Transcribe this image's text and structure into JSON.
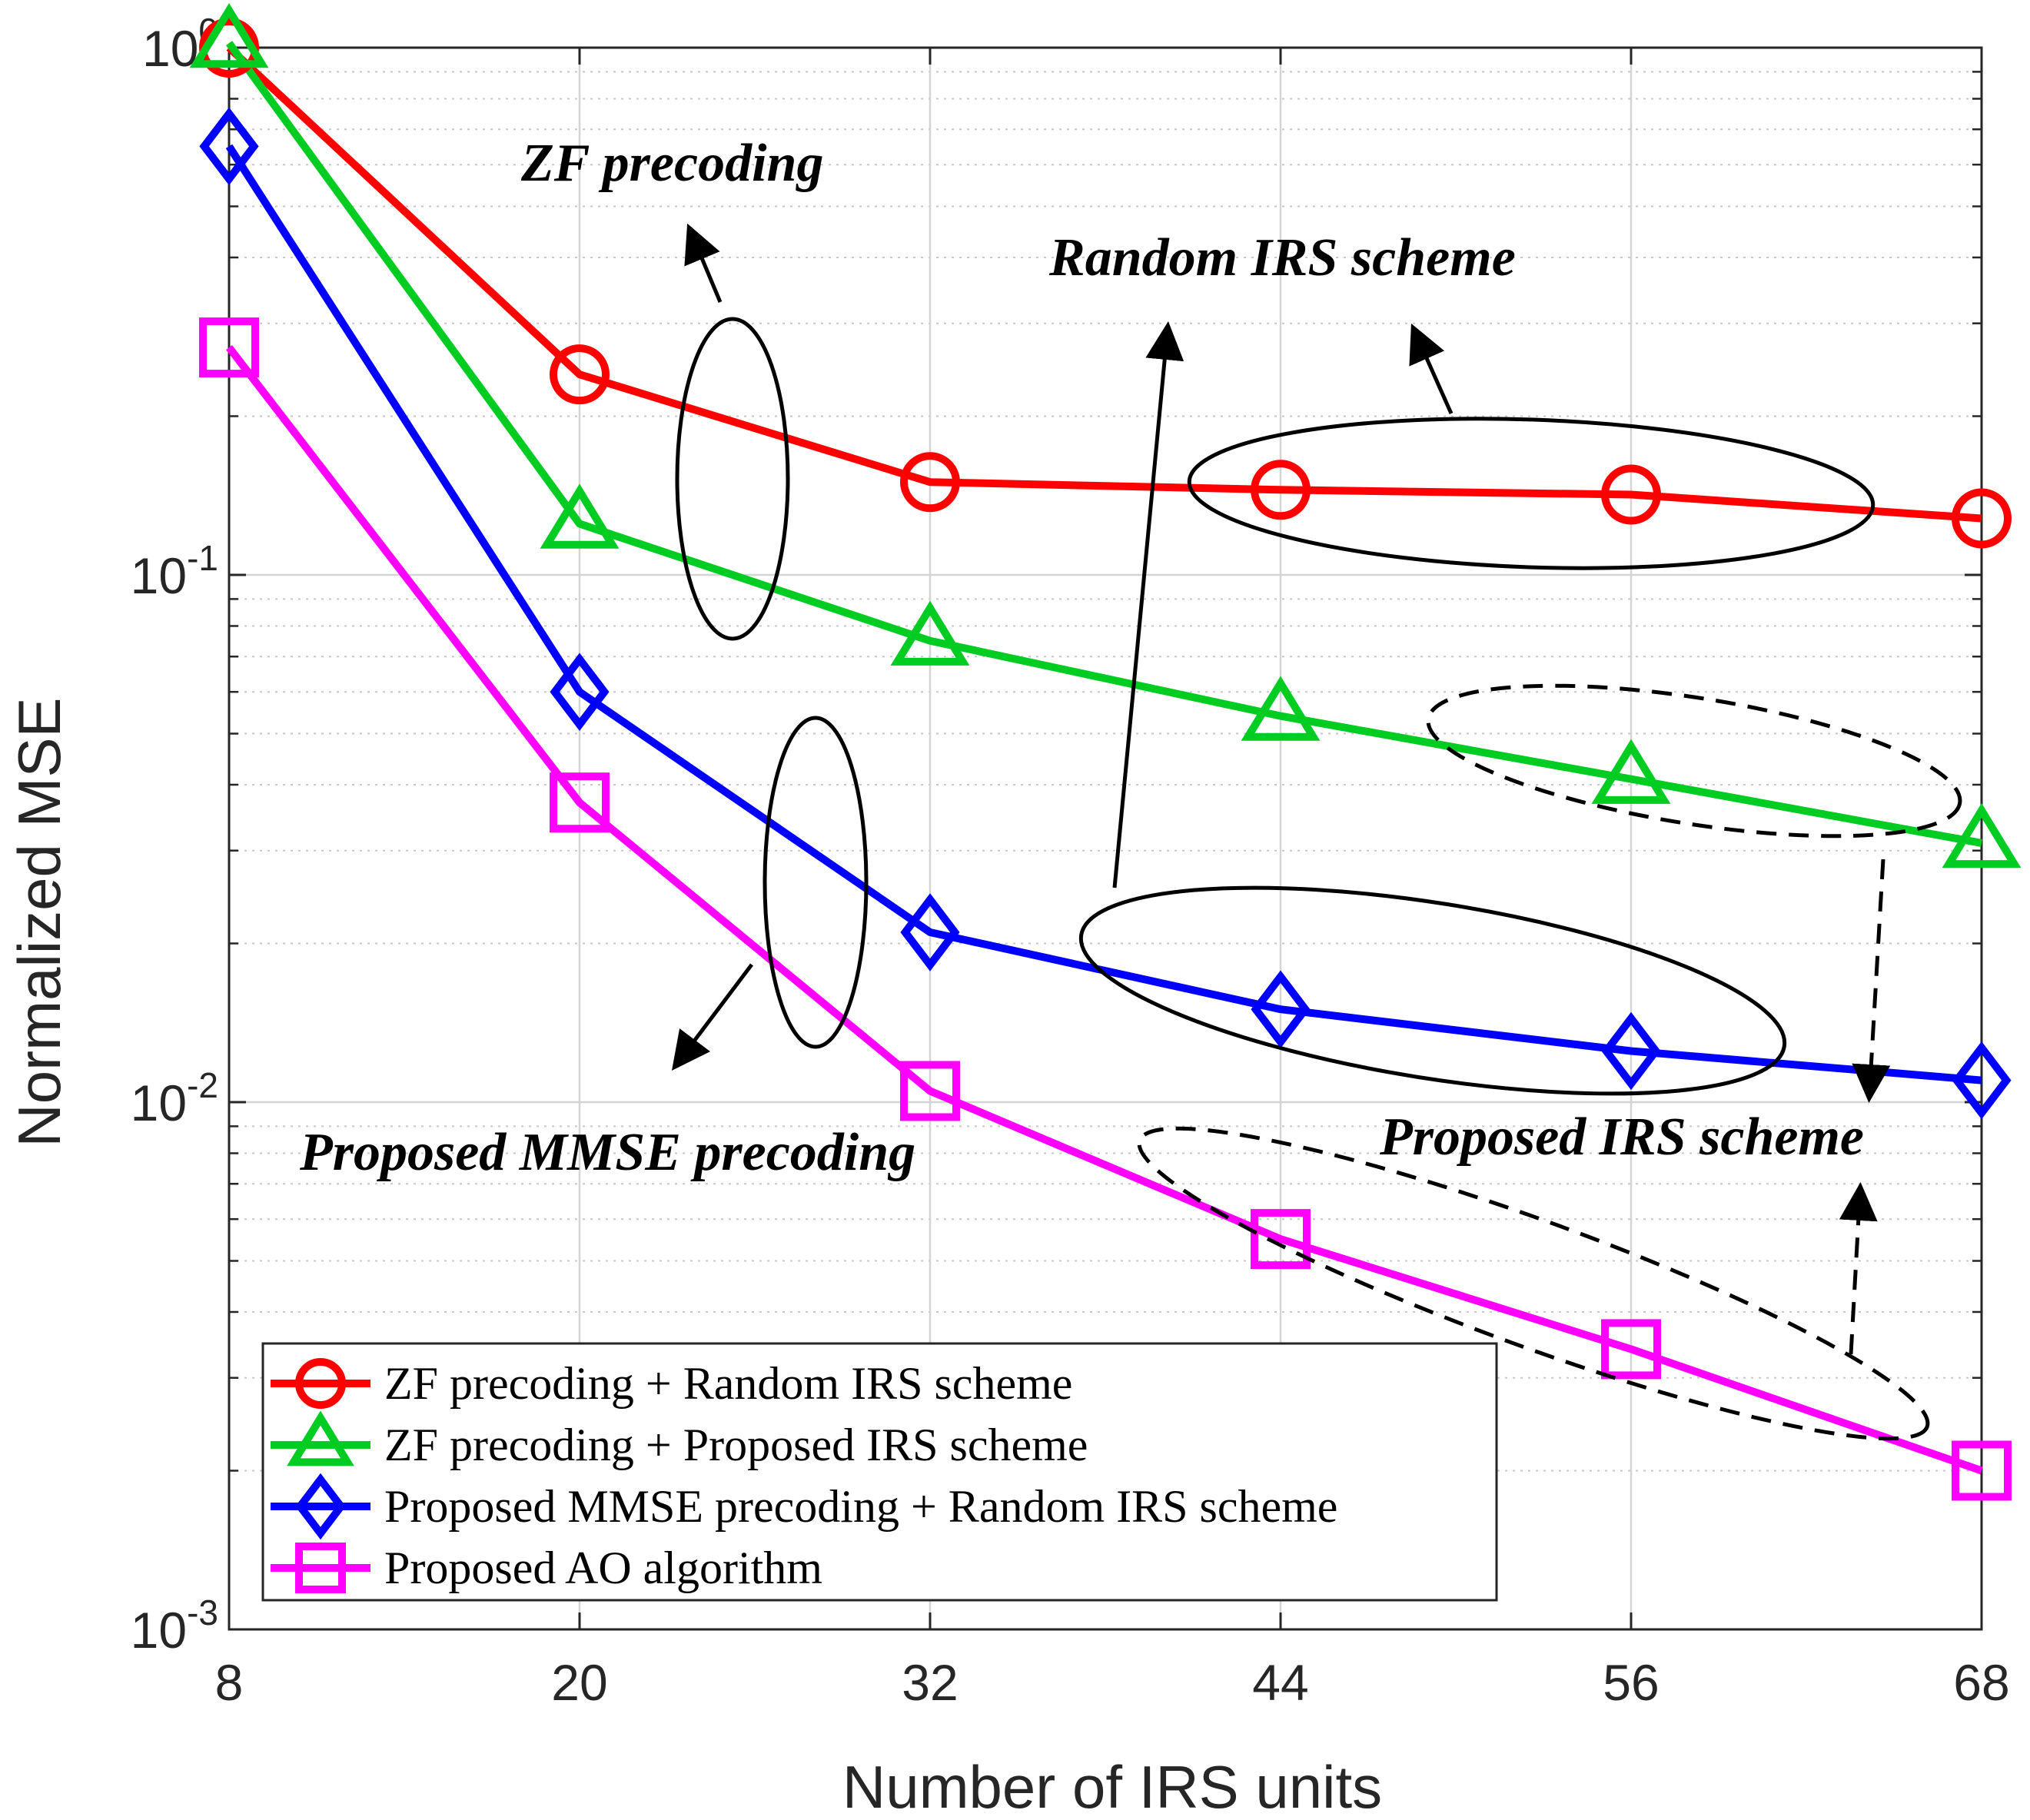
{
  "chart_data": {
    "type": "line",
    "xlabel": "Number of IRS units",
    "ylabel": "Normalized MSE",
    "x": [
      8,
      20,
      32,
      44,
      56,
      68
    ],
    "xlim": [
      8,
      68
    ],
    "ylim": [
      0.001,
      1
    ],
    "yscale": "log",
    "x_ticks": [
      "8",
      "20",
      "32",
      "44",
      "56",
      "68"
    ],
    "y_ticks": [
      {
        "value": 1,
        "base": "10",
        "exp": "0"
      },
      {
        "value": 0.1,
        "base": "10",
        "exp": "-1"
      },
      {
        "value": 0.01,
        "base": "10",
        "exp": "-2"
      },
      {
        "value": 0.001,
        "base": "10",
        "exp": "-3"
      }
    ],
    "grid": true,
    "legend_position": "bottom-left",
    "series": [
      {
        "name": "ZF precoding + Random IRS scheme",
        "color": "#ff0000",
        "marker": "circle",
        "values": [
          1.0,
          0.24,
          0.15,
          0.145,
          0.142,
          0.128
        ]
      },
      {
        "name": "ZF precoding + Proposed IRS scheme",
        "color": "#00cc22",
        "marker": "triangle",
        "values": [
          1.02,
          0.125,
          0.075,
          0.054,
          0.041,
          0.031
        ]
      },
      {
        "name": "Proposed MMSE precoding + Random IRS scheme",
        "color": "#0000ff",
        "marker": "diamond",
        "values": [
          0.65,
          0.06,
          0.021,
          0.015,
          0.0125,
          0.011
        ]
      },
      {
        "name": "Proposed AO algorithm",
        "color": "#ff00ff",
        "marker": "square",
        "values": [
          0.27,
          0.037,
          0.0105,
          0.0055,
          0.0034,
          0.002
        ]
      }
    ],
    "annotations": [
      {
        "text": "ZF precoding"
      },
      {
        "text": "Random IRS scheme"
      },
      {
        "text": "Proposed MMSE precoding"
      },
      {
        "text": "Proposed IRS scheme"
      }
    ]
  }
}
